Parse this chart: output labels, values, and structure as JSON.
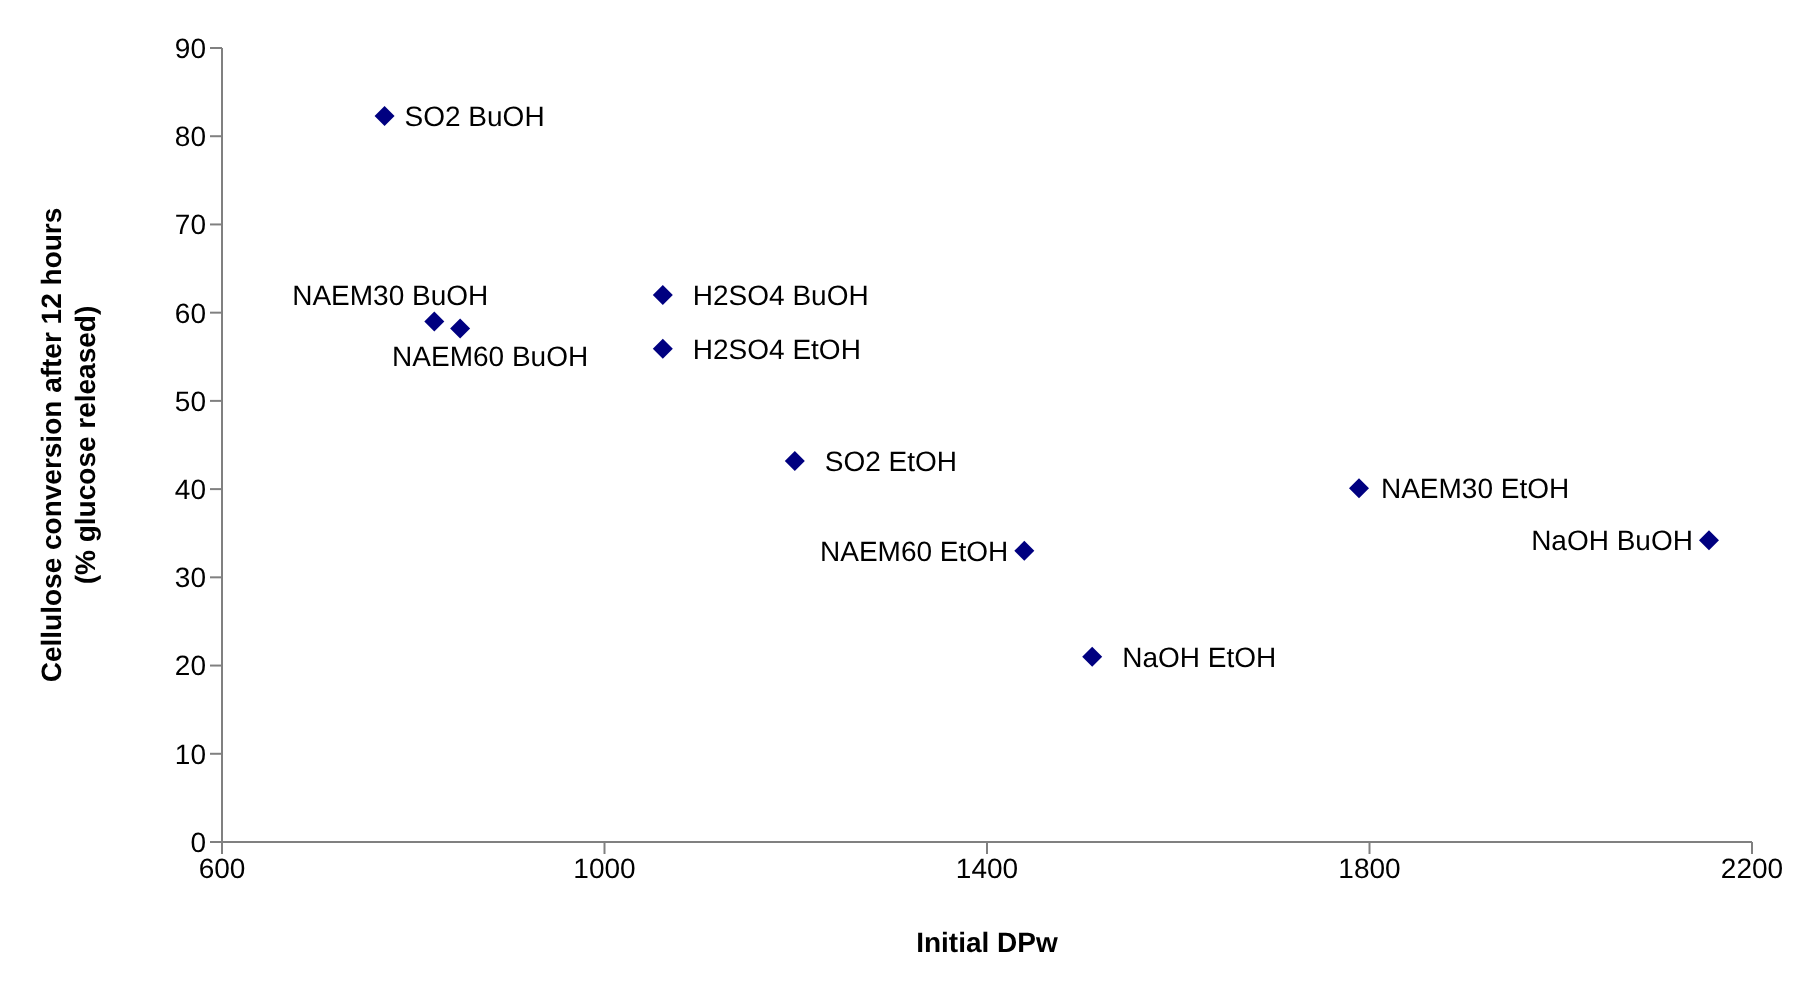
{
  "chart_data": {
    "type": "scatter",
    "xlabel": "Initial DPw",
    "ylabel": "Cellulose conversion after 12 hours\n(% glucose released)",
    "x": [
      770,
      822,
      849,
      1061,
      1061,
      1199,
      1439,
      1510,
      1789,
      2155
    ],
    "series": [
      {
        "color": "#000080",
        "values": [
          82.3,
          59.0,
          58.2,
          62.0,
          55.9,
          43.2,
          33.0,
          21.0,
          40.1,
          34.2
        ]
      }
    ],
    "xlim": [
      600,
      2200
    ],
    "xticks": [
      600,
      1000,
      1400,
      1800,
      2200
    ],
    "ylim": [
      0,
      90
    ],
    "yticks": [
      0,
      10,
      20,
      30,
      40,
      50,
      60,
      70,
      80,
      90
    ],
    "grid": false,
    "legend": false,
    "marker": "diamond",
    "annotations": [
      {
        "text": "SO2 BuOH",
        "x": 770,
        "y": 82.3
      },
      {
        "text": "NAEM30 BuOH",
        "x": 822,
        "y": 59.0
      },
      {
        "text": "NAEM60 BuOH",
        "x": 849,
        "y": 58.2
      },
      {
        "text": "H2SO4 BuOH",
        "x": 1061,
        "y": 62.0
      },
      {
        "text": "H2SO4 EtOH",
        "x": 1061,
        "y": 55.9
      },
      {
        "text": "SO2 EtOH",
        "x": 1199,
        "y": 43.2
      },
      {
        "text": "NAEM60 EtOH",
        "x": 1439,
        "y": 33.0
      },
      {
        "text": "NaOH EtOH",
        "x": 1510,
        "y": 21.0
      },
      {
        "text": "NAEM30 EtOH",
        "x": 1789,
        "y": 40.1
      },
      {
        "text": "NaOH BuOH",
        "x": 2155,
        "y": 34.2
      }
    ]
  }
}
